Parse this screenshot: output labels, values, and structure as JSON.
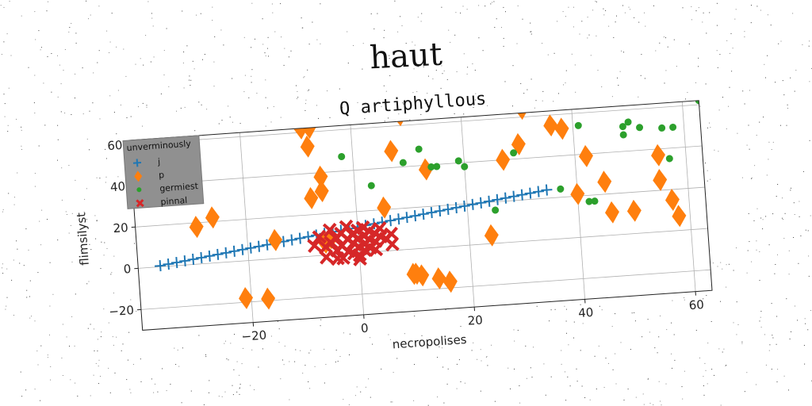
{
  "figure_title": "haut",
  "chart_data": {
    "type": "scatter",
    "title": "Q artiphyllous",
    "xlabel": "necropolises",
    "ylabel": "flimsilyst",
    "xlim": [
      -40,
      63
    ],
    "ylim": [
      -30,
      62
    ],
    "xticks": [
      "−20",
      "0",
      "20",
      "40",
      "60"
    ],
    "xtick_values": [
      -20,
      0,
      20,
      40,
      60
    ],
    "yticks": [
      "−20",
      "0",
      "20",
      "40",
      "60"
    ],
    "ytick_values": [
      -20,
      0,
      20,
      40,
      60
    ],
    "grid": true,
    "legend": {
      "title": "unverminously",
      "position": "top-left"
    },
    "series": [
      {
        "name": "j",
        "marker": "plus",
        "color": "#1f77b4",
        "x": [
          -36,
          -34.5,
          -33,
          -31.5,
          -30,
          -28.5,
          -27,
          -25.5,
          -24,
          -22.5,
          -21,
          -19.5,
          -18,
          -16.5,
          -15,
          -13.5,
          -12,
          -10.5,
          -9,
          -7.5,
          -6,
          -4.5,
          -3,
          -1.5,
          0,
          1.5,
          3,
          4.5,
          6,
          7.5,
          9,
          10.5,
          12,
          13.5,
          15,
          16.5,
          18,
          19.5,
          21,
          22.5,
          24,
          25.5,
          27,
          28.5,
          30,
          31.5,
          33,
          34.5
        ],
        "y": [
          0.5,
          1,
          1.5,
          2,
          2.5,
          3,
          3.5,
          4,
          4.5,
          5,
          5.5,
          6,
          6.5,
          7,
          7.5,
          8,
          8.5,
          9,
          9.5,
          10,
          10.5,
          11,
          11.5,
          12,
          12.5,
          13,
          13.5,
          14,
          14.5,
          15,
          15.5,
          16,
          16.5,
          17,
          17.5,
          18,
          18.5,
          19,
          19.5,
          20,
          20.5,
          21,
          21.5,
          22,
          22.5,
          23,
          23.5,
          24
        ]
      },
      {
        "name": "p",
        "marker": "diamond",
        "color": "#ff7f0e",
        "x": [
          -9,
          -7.5,
          -8,
          -6,
          -8,
          -6,
          -29,
          -26,
          -21,
          -17,
          -15,
          -6,
          -5,
          5,
          7,
          9,
          9.5,
          10,
          11,
          13,
          14,
          16,
          24,
          27,
          28,
          30,
          31,
          36,
          38,
          40,
          42,
          45,
          46,
          50,
          55,
          55,
          57,
          58
        ],
        "y": [
          62,
          62,
          53,
          38,
          28,
          31,
          18,
          22,
          -18,
          -19,
          9,
          6,
          8,
          21,
          48,
          65,
          -12,
          -12,
          -13,
          38,
          -15,
          -17,
          4,
          40,
          70,
          47,
          64,
          55,
          53,
          21,
          39,
          26,
          11,
          11,
          37,
          25,
          15,
          7
        ]
      },
      {
        "name": "germiest",
        "marker": "circle",
        "color": "#2ca02c",
        "x": [
          -2,
          3,
          9,
          9.5,
          10,
          11,
          12,
          14,
          15,
          16,
          19,
          20,
          25,
          29,
          34,
          37,
          41,
          42,
          43,
          49,
          49,
          50,
          52,
          56,
          57,
          58,
          63
        ],
        "y": [
          47,
          32,
          42,
          65,
          66,
          65,
          48,
          39,
          39,
          66,
          41,
          38,
          16,
          43,
          65,
          24,
          54,
          17,
          17,
          52,
          48,
          54,
          51,
          50,
          35,
          50,
          62
        ]
      },
      {
        "name": "pinnal",
        "marker": "x",
        "color": "#d62728",
        "x": [
          -7,
          -6,
          -5,
          -5,
          -4,
          -4,
          -3,
          -3,
          -2,
          -2,
          -2,
          -1,
          -1,
          -1,
          0,
          0,
          0,
          0,
          1,
          1,
          1,
          2,
          2,
          2,
          3,
          3,
          4,
          4,
          5,
          6,
          -6,
          -3,
          0,
          3,
          6,
          -8,
          -4,
          1
        ],
        "y": [
          9,
          4,
          12,
          6,
          8,
          2,
          10,
          4,
          7,
          13,
          1,
          9,
          5,
          0,
          11,
          7,
          3,
          -1,
          8,
          4,
          12,
          6,
          10,
          2,
          9,
          5,
          7,
          11,
          6,
          8,
          -1,
          -2,
          -3,
          1,
          3,
          5,
          -2,
          1
        ]
      }
    ]
  }
}
